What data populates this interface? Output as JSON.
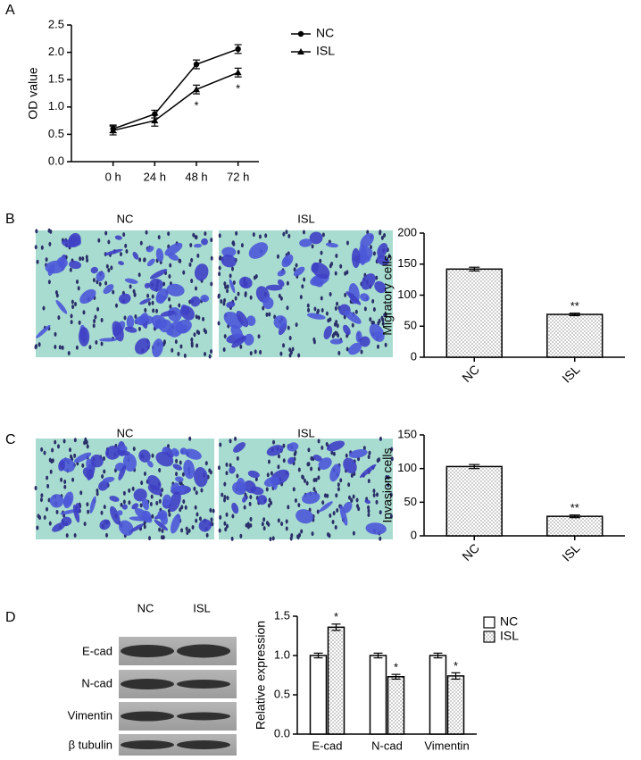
{
  "panel_labels": [
    "A",
    "B",
    "C",
    "D"
  ],
  "micrographs": [
    {
      "labels": [
        "NC",
        "ISL"
      ]
    },
    {
      "labels": [
        "NC",
        "ISL"
      ]
    }
  ],
  "blot": {
    "columns": [
      "NC",
      "ISL"
    ],
    "rows": [
      "E-cad",
      "N-cad",
      "Vimentin",
      "β tubulin"
    ]
  },
  "chart_data": [
    {
      "type": "line",
      "y_label": "OD value",
      "categories": [
        "0 h",
        "24 h",
        "48 h",
        "72 h"
      ],
      "series": [
        {
          "name": "NC",
          "color": "#000000",
          "marker": "circle",
          "values": [
            0.6,
            0.87,
            1.78,
            2.06
          ],
          "errors": [
            0.07,
            0.07,
            0.08,
            0.08
          ]
        },
        {
          "name": "ISL",
          "color": "#000000",
          "marker": "triangle",
          "values": [
            0.57,
            0.75,
            1.32,
            1.63
          ],
          "errors": [
            0.08,
            0.1,
            0.08,
            0.08
          ]
        }
      ],
      "annotations": [
        {
          "text": "*",
          "series": 1,
          "index": 2
        },
        {
          "text": "*",
          "series": 1,
          "index": 3
        }
      ],
      "ylim": [
        0,
        2.5
      ],
      "yticks": [
        {
          "value": 0,
          "label": "0.0"
        },
        0.5,
        {
          "value": 1,
          "label": "1.0"
        },
        1.5,
        {
          "value": 2,
          "label": "2.0"
        },
        2.5
      ]
    },
    {
      "type": "bar",
      "y_label": "Migratory cells",
      "categories": [
        "NC",
        "ISL"
      ],
      "values": [
        142,
        69
      ],
      "errors": [
        3,
        2
      ],
      "pattern": "dots",
      "annotations": [
        {
          "text": "**",
          "index": 1
        }
      ],
      "ylim": [
        0,
        200
      ],
      "yticks": [
        0,
        50,
        100,
        150,
        200
      ]
    },
    {
      "type": "bar",
      "y_label": "Invasion cells",
      "categories": [
        "NC",
        "ISL"
      ],
      "values": [
        103,
        29
      ],
      "errors": [
        3,
        2
      ],
      "pattern": "dots",
      "annotations": [
        {
          "text": "**",
          "index": 1
        }
      ],
      "ylim": [
        0,
        150
      ],
      "yticks": [
        0,
        50,
        100,
        150
      ]
    },
    {
      "type": "bar",
      "y_label": "Relative expression",
      "categories": [
        "E-cad",
        "N-cad",
        "Vimentin"
      ],
      "series": [
        {
          "name": "NC",
          "pattern": "none",
          "values": [
            1.0,
            1.0,
            1.0
          ],
          "errors": [
            0.03,
            0.03,
            0.03
          ]
        },
        {
          "name": "ISL",
          "pattern": "dots",
          "values": [
            1.36,
            0.73,
            0.74
          ],
          "errors": [
            0.04,
            0.03,
            0.04
          ]
        }
      ],
      "annotations": [
        {
          "text": "*",
          "series": 1,
          "index": 0
        },
        {
          "text": "*",
          "series": 1,
          "index": 1
        },
        {
          "text": "*",
          "series": 1,
          "index": 2
        }
      ],
      "ylim": [
        0,
        1.5
      ],
      "yticks": [
        {
          "value": 0,
          "label": "0.0"
        },
        0.5,
        {
          "value": 1,
          "label": "1.0"
        },
        1.5
      ]
    }
  ]
}
